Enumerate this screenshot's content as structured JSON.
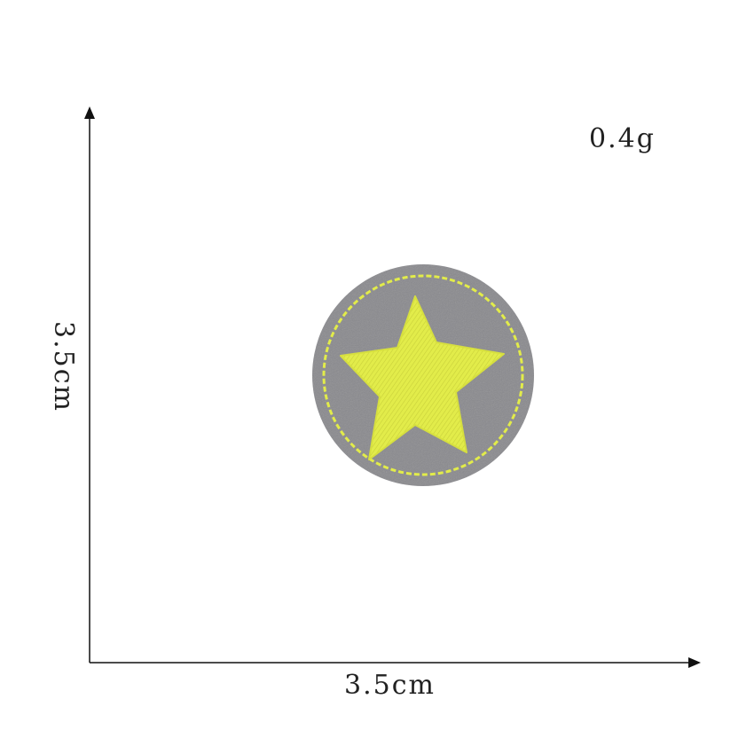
{
  "product": {
    "weight_label": "0.4g",
    "width_label": "3.5cm",
    "height_label": "3.5cm"
  },
  "patch": {
    "shape": "circle",
    "motif": "star-icon",
    "felt_color": "#8a8a8e",
    "thread_color": "#e2ec4a"
  }
}
